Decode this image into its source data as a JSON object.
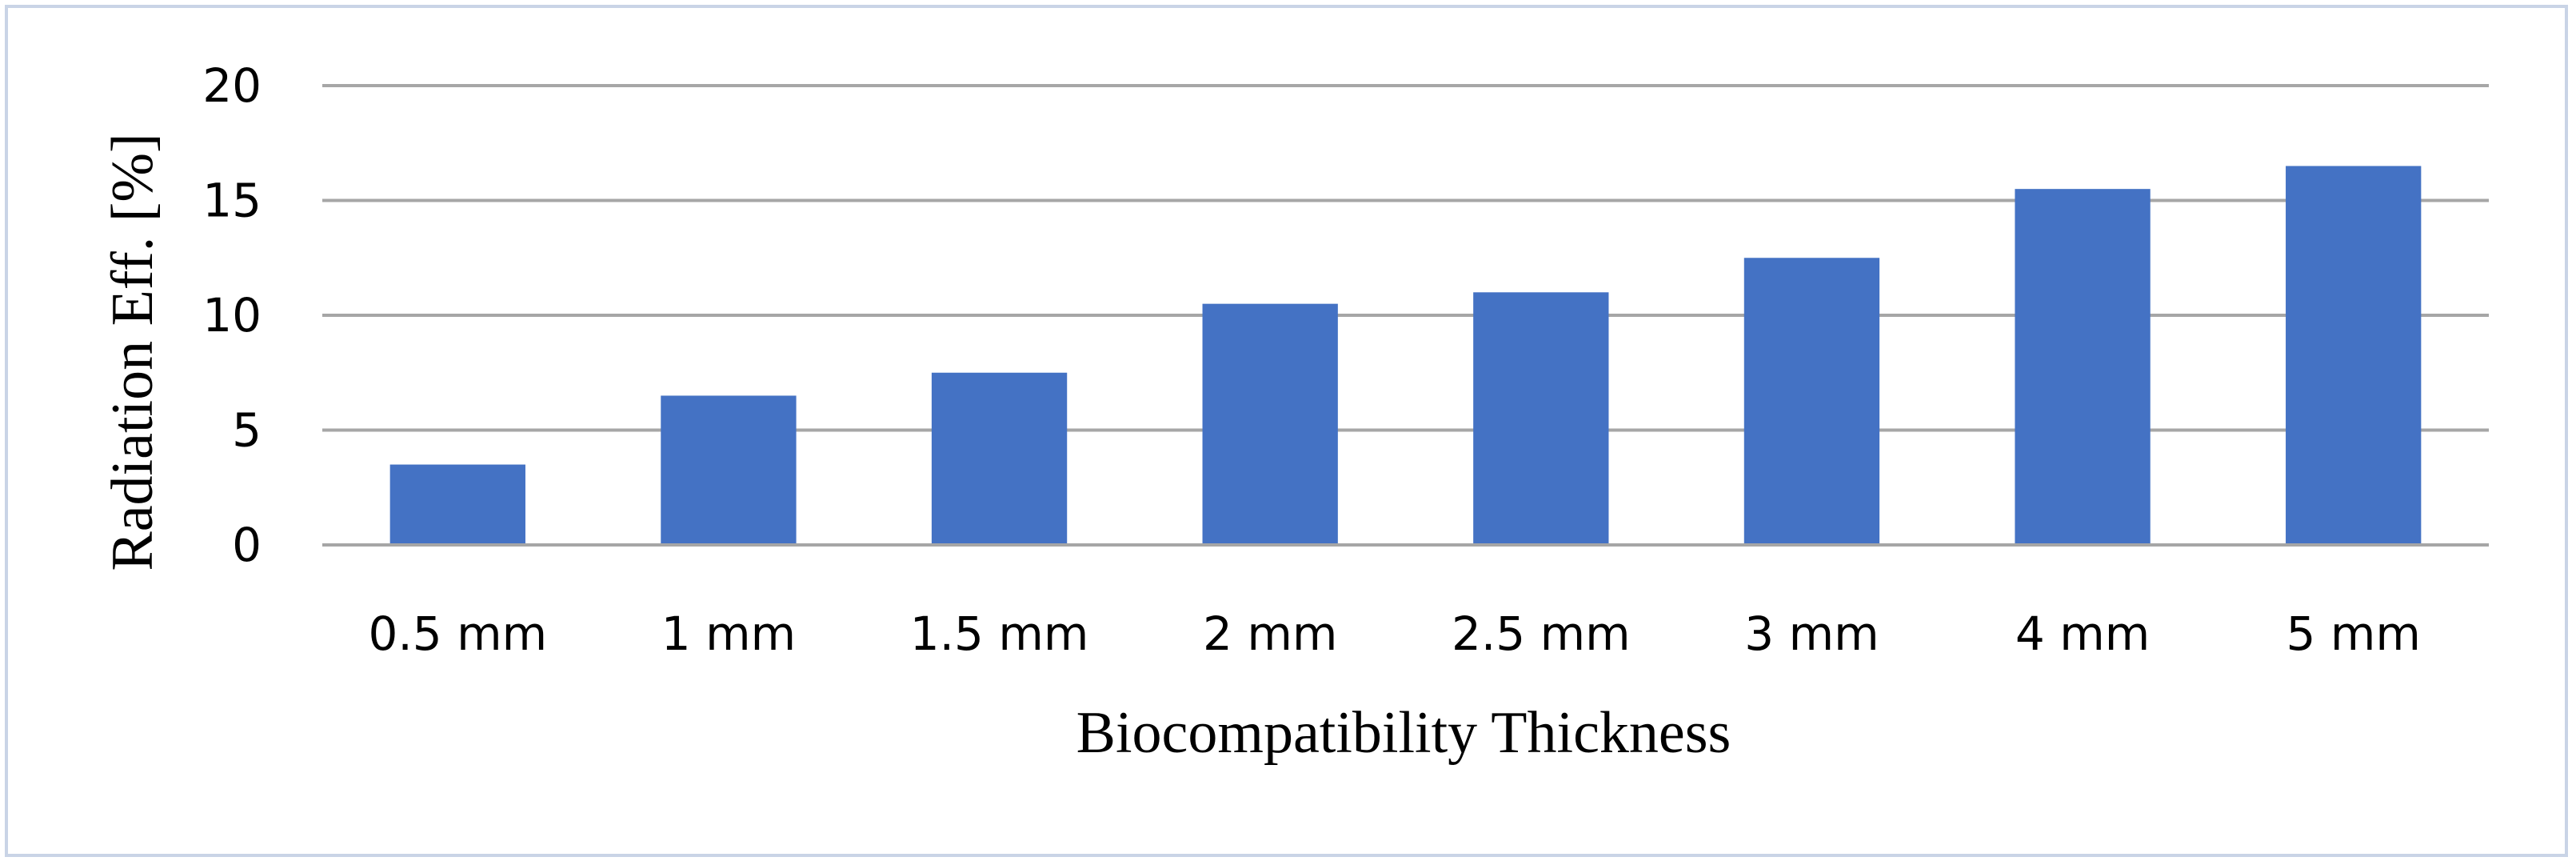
{
  "chart_data": {
    "type": "bar",
    "title": "",
    "xlabel": "Biocompatibility Thickness",
    "ylabel": "Radiation Eff. [%]",
    "categories": [
      "0.5 mm",
      "1 mm",
      "1.5 mm",
      "2 mm",
      "2.5 mm",
      "3 mm",
      "4 mm",
      "5 mm"
    ],
    "values": [
      3.5,
      6.5,
      7.5,
      10.5,
      11,
      12.5,
      15.5,
      16.5
    ],
    "ylim": [
      0,
      20
    ],
    "yticks": [
      0,
      5,
      10,
      15,
      20
    ],
    "grid": true,
    "legend": "none",
    "colors": {
      "bar": "#4472c4",
      "grid": "#a6a6a6",
      "frame": "#c9d4e6"
    }
  }
}
